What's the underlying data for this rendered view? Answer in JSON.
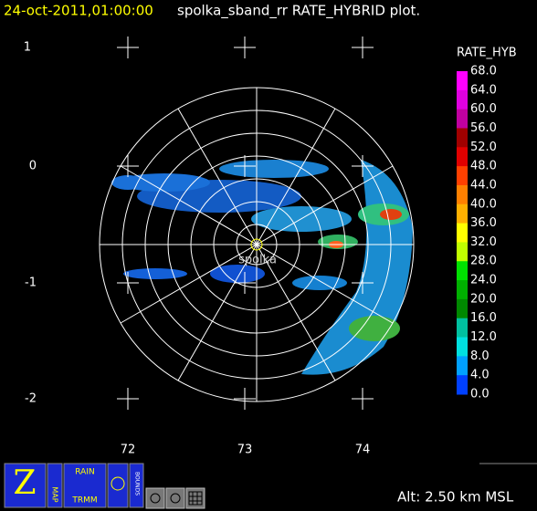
{
  "header": {
    "datetime": "24-oct-2011,01:00:00",
    "title": "spolka_sband_rr RATE_HYBRID  plot."
  },
  "axes": {
    "y_labels": [
      "1",
      "0",
      "-1",
      "-2"
    ],
    "x_labels": [
      "72",
      "73",
      "74"
    ]
  },
  "station": "spolka",
  "colorbar": {
    "title": "RATE_HYB",
    "labels": [
      "68.0",
      "64.0",
      "60.0",
      "56.0",
      "52.0",
      "48.0",
      "44.0",
      "40.0",
      "36.0",
      "32.0",
      "28.0",
      "24.0",
      "20.0",
      "16.0",
      "12.0",
      "8.0",
      "4.0",
      "0.0"
    ],
    "colors": [
      "#ff00ff",
      "#e000e0",
      "#c000a0",
      "#a00000",
      "#e00000",
      "#ff4000",
      "#ff8000",
      "#ffb000",
      "#ffff00",
      "#c0ff00",
      "#00e000",
      "#00b000",
      "#008800",
      "#00c0a0",
      "#00e0e0",
      "#00a0ff",
      "#0040ff"
    ]
  },
  "status": "Alt: 2.50 km MSL",
  "toolbar": {
    "z": "Z",
    "map": "MAP",
    "rain": "RAIN",
    "trmm": "TRMM",
    "bounds": "BOUNDS"
  }
}
